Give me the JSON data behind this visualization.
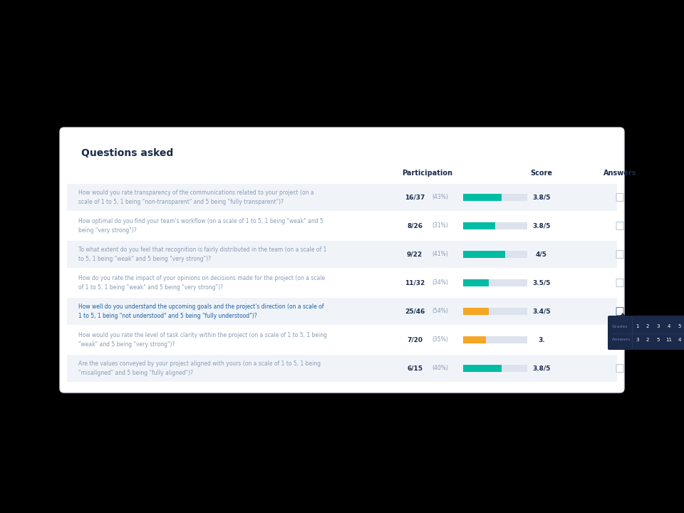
{
  "title": "Questions asked",
  "columns": [
    "Participation",
    "Score",
    "Answers"
  ],
  "rows": [
    {
      "question": "How would you rate transparency of the communications related to your project (on a\nscale of 1 to 5, 1 being \"non-transparent\" and 5 being \"fully transparent\")?",
      "participation": "16/37",
      "pct": "(43%)",
      "score": "3.8/5",
      "bar_color": "#00BCA4",
      "bar_fill": 0.6,
      "highlighted": false
    },
    {
      "question": "How optimal do you find your team's workflow (on a scale of 1 to 5, 1 being \"weak\" and 5\nbeing \"very strong\")?",
      "participation": "8/26",
      "pct": "(31%)",
      "score": "3.8/5",
      "bar_color": "#00BCA4",
      "bar_fill": 0.5,
      "highlighted": false
    },
    {
      "question": "To what extent do you feel that recognition is fairly distributed in the team (on a scale of 1\nto 5, 1 being \"weak\" and 5 being \"very strong\")?",
      "participation": "9/22",
      "pct": "(41%)",
      "score": "4/5",
      "bar_color": "#00BCA4",
      "bar_fill": 0.65,
      "highlighted": false
    },
    {
      "question": "How do you rate the impact of your opinions on decisions made for the project (on a scale\nof 1 to 5, 1 being \"weak\" and 5 being \"very strong\")?",
      "participation": "11/32",
      "pct": "(34%)",
      "score": "3.5/5",
      "bar_color": "#00BCA4",
      "bar_fill": 0.4,
      "highlighted": false
    },
    {
      "question": "How well do you understand the upcoming goals and the project's direction (on a scale of\n1 to 5, 1 being \"not understood\" and 5 being \"fully understood\")?",
      "participation": "25/46",
      "pct": "(54%)",
      "score": "3.4/5",
      "bar_color": "#F5A623",
      "bar_fill": 0.4,
      "highlighted": true
    },
    {
      "question": "How would you rate the level of task clarity within the project (on a scale of 1 to 5, 1 being\n\"weak\" and 5 being \"very strong\")?",
      "participation": "7/20",
      "pct": "(35%)",
      "score": "3.",
      "bar_color": "#F5A623",
      "bar_fill": 0.36,
      "highlighted": false
    },
    {
      "question": "Are the values conveyed by your project aligned with yours (on a scale of 1 to 5, 1 being\n\"misaligned\" and 5 being \"fully aligned\")?",
      "participation": "6/15",
      "pct": "(40%)",
      "score": "3.8/5",
      "bar_color": "#00BCA4",
      "bar_fill": 0.6,
      "highlighted": false
    }
  ],
  "tooltip": {
    "grades": [
      1,
      2,
      3,
      4,
      5
    ],
    "answers": [
      3,
      2,
      5,
      11,
      4
    ],
    "row_index": 4,
    "bg_color": "#1B2A4A",
    "text_color": "#ffffff",
    "label_color": "#6b7fa8"
  },
  "outer_bg": "#000000",
  "card_bg": "#ffffff",
  "card_border": "#e0e4ec",
  "title_color": "#1B2A4A",
  "header_color": "#1B2A4A",
  "question_color": "#8a9bb5",
  "highlight_question_color": "#1a5fa8",
  "participation_bold_color": "#1B2A4A",
  "pct_color": "#8a9bb5",
  "score_color": "#1B2A4A",
  "bar_bg_color": "#dce3ed",
  "icon_color": "#b8c4d4",
  "icon_highlight_color": "#4a80c4",
  "row_alt_color": "#f0f4f8"
}
